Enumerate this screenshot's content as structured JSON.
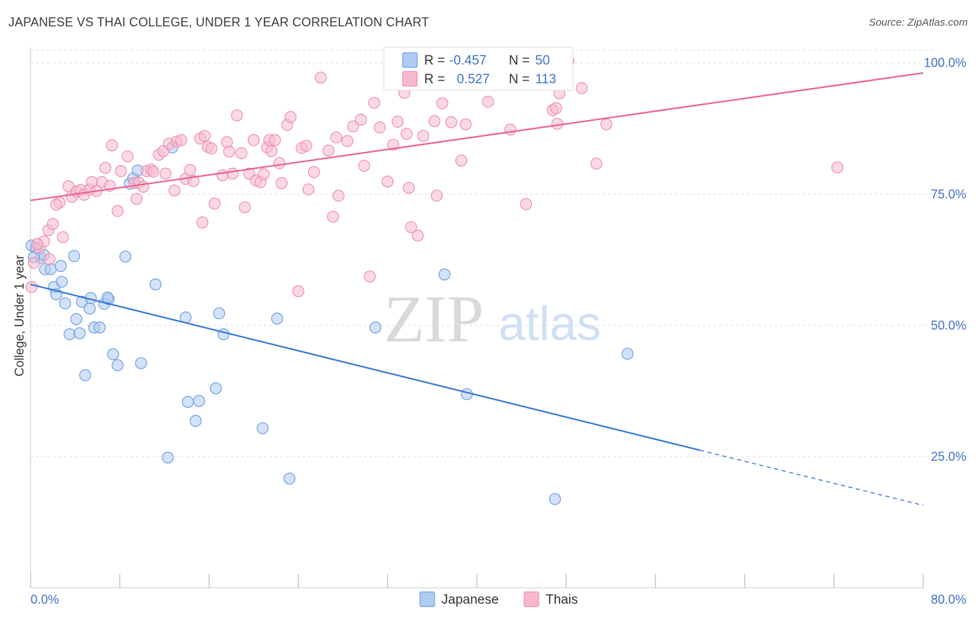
{
  "title": "JAPANESE VS THAI COLLEGE, UNDER 1 YEAR CORRELATION CHART",
  "source": "Source: ZipAtlas.com",
  "watermark": {
    "zip": "ZIP",
    "atlas": "atlas"
  },
  "colors": {
    "japanese_fill": "#aecbf2",
    "japanese_stroke": "#6f9fe0",
    "japanese_line": "#3777d4",
    "thai_fill": "#f7b9cd",
    "thai_stroke": "#ee8fb0",
    "thai_line": "#e8638f",
    "accent_text": "#3f72c8",
    "grid": "#dddddd"
  },
  "stats_box": {
    "rows": [
      {
        "series": "Japanese",
        "r_label": "R =",
        "r_value": "-0.457",
        "n_label": "N =",
        "n_value": "50"
      },
      {
        "series": "Thais",
        "r_label": "R =",
        "r_value": "0.527",
        "n_label": "N =",
        "n_value": "113"
      }
    ]
  },
  "legend": {
    "items": [
      "Japanese",
      "Thais"
    ]
  },
  "chart_data": {
    "type": "scatter",
    "title": "JAPANESE VS THAI COLLEGE, UNDER 1 YEAR CORRELATION CHART",
    "xlabel": "",
    "ylabel": "College, Under 1 year",
    "xlim": [
      0,
      80
    ],
    "ylim": [
      0,
      103
    ],
    "x_tick_labels": [
      "0.0%",
      "80.0%"
    ],
    "y_ticks": [
      25,
      50,
      75,
      100
    ],
    "y_tick_labels": [
      "25.0%",
      "50.0%",
      "75.0%",
      "100.0%"
    ],
    "grid": true,
    "legend_position": "bottom-center",
    "series": [
      {
        "name": "Japanese",
        "r": -0.457,
        "n": 50,
        "trend": {
          "x0": 0,
          "y0": 57.8,
          "x1": 60,
          "y1": 26.2,
          "dashed_to_x": 80,
          "dashed_to_y": 15.7
        },
        "points": [
          [
            0.1,
            65.2
          ],
          [
            0.5,
            64.7
          ],
          [
            0.9,
            62.9
          ],
          [
            1.3,
            60.7
          ],
          [
            1.8,
            60.7
          ],
          [
            1.2,
            63.4
          ],
          [
            2.7,
            61.3
          ],
          [
            3.9,
            63.2
          ],
          [
            2.1,
            57.3
          ],
          [
            2.3,
            55.9
          ],
          [
            2.8,
            58.3
          ],
          [
            3.1,
            54.2
          ],
          [
            4.1,
            51.2
          ],
          [
            4.6,
            54.5
          ],
          [
            5.3,
            53.2
          ],
          [
            3.5,
            48.3
          ],
          [
            4.4,
            48.5
          ],
          [
            5.7,
            49.6
          ],
          [
            6.2,
            49.6
          ],
          [
            6.6,
            54.1
          ],
          [
            7.0,
            55.0
          ],
          [
            7.4,
            44.5
          ],
          [
            7.8,
            42.4
          ],
          [
            9.9,
            42.8
          ],
          [
            4.9,
            40.5
          ],
          [
            11.2,
            57.8
          ],
          [
            8.5,
            63.1
          ],
          [
            8.9,
            77.0
          ],
          [
            9.2,
            78.0
          ],
          [
            9.6,
            79.5
          ],
          [
            12.7,
            83.9
          ],
          [
            13.9,
            51.5
          ],
          [
            14.1,
            35.4
          ],
          [
            15.1,
            35.6
          ],
          [
            14.8,
            31.8
          ],
          [
            16.6,
            38.0
          ],
          [
            16.9,
            52.3
          ],
          [
            17.3,
            48.3
          ],
          [
            12.3,
            24.8
          ],
          [
            20.8,
            30.4
          ],
          [
            22.1,
            51.3
          ],
          [
            23.2,
            20.8
          ],
          [
            30.9,
            49.6
          ],
          [
            37.1,
            59.7
          ],
          [
            39.1,
            36.9
          ],
          [
            53.5,
            44.6
          ],
          [
            47.0,
            16.9
          ],
          [
            0.3,
            63.0
          ],
          [
            5.4,
            55.2
          ],
          [
            6.9,
            55.3
          ]
        ]
      },
      {
        "name": "Thais",
        "r": 0.527,
        "n": 113,
        "trend": {
          "x0": 0,
          "y0": 73.8,
          "x1": 80,
          "y1": 98.1
        },
        "points": [
          [
            0.1,
            57.3
          ],
          [
            0.3,
            61.9
          ],
          [
            0.8,
            64.7
          ],
          [
            1.2,
            66.0
          ],
          [
            1.6,
            68.1
          ],
          [
            2.0,
            69.3
          ],
          [
            2.9,
            66.8
          ],
          [
            2.6,
            73.4
          ],
          [
            3.4,
            76.5
          ],
          [
            3.7,
            74.5
          ],
          [
            4.1,
            75.5
          ],
          [
            4.5,
            75.8
          ],
          [
            4.8,
            74.9
          ],
          [
            5.3,
            75.9
          ],
          [
            5.5,
            77.3
          ],
          [
            5.9,
            75.6
          ],
          [
            6.4,
            77.3
          ],
          [
            6.7,
            80.0
          ],
          [
            7.1,
            76.6
          ],
          [
            7.3,
            84.3
          ],
          [
            7.8,
            71.8
          ],
          [
            8.1,
            79.4
          ],
          [
            8.7,
            82.2
          ],
          [
            9.3,
            77.1
          ],
          [
            9.5,
            74.1
          ],
          [
            9.7,
            77.2
          ],
          [
            10.1,
            76.4
          ],
          [
            10.4,
            79.4
          ],
          [
            10.8,
            79.7
          ],
          [
            11.0,
            79.3
          ],
          [
            11.5,
            82.5
          ],
          [
            11.9,
            83.2
          ],
          [
            12.1,
            78.9
          ],
          [
            12.4,
            84.6
          ],
          [
            13.1,
            85.0
          ],
          [
            12.9,
            75.7
          ],
          [
            13.5,
            85.3
          ],
          [
            13.9,
            77.9
          ],
          [
            14.3,
            79.6
          ],
          [
            14.6,
            77.5
          ],
          [
            15.2,
            85.6
          ],
          [
            15.6,
            86.1
          ],
          [
            15.9,
            84.0
          ],
          [
            16.2,
            83.7
          ],
          [
            16.5,
            73.2
          ],
          [
            15.4,
            69.6
          ],
          [
            17.2,
            78.6
          ],
          [
            17.6,
            84.9
          ],
          [
            17.8,
            83.1
          ],
          [
            18.1,
            78.9
          ],
          [
            18.5,
            90.0
          ],
          [
            18.9,
            82.8
          ],
          [
            19.2,
            72.5
          ],
          [
            19.6,
            78.9
          ],
          [
            20.0,
            85.3
          ],
          [
            20.2,
            77.6
          ],
          [
            20.6,
            77.3
          ],
          [
            20.9,
            78.8
          ],
          [
            21.2,
            83.9
          ],
          [
            21.4,
            85.3
          ],
          [
            21.6,
            83.2
          ],
          [
            21.9,
            85.3
          ],
          [
            22.3,
            80.9
          ],
          [
            22.5,
            77.1
          ],
          [
            23.0,
            88.2
          ],
          [
            23.3,
            89.7
          ],
          [
            24.3,
            83.8
          ],
          [
            24.7,
            84.2
          ],
          [
            24.9,
            75.9
          ],
          [
            25.4,
            79.2
          ],
          [
            26.0,
            97.2
          ],
          [
            26.7,
            83.3
          ],
          [
            27.1,
            70.7
          ],
          [
            27.4,
            85.8
          ],
          [
            27.6,
            74.7
          ],
          [
            28.4,
            85.1
          ],
          [
            28.9,
            87.9
          ],
          [
            29.6,
            89.2
          ],
          [
            29.9,
            80.4
          ],
          [
            30.4,
            59.3
          ],
          [
            30.8,
            92.4
          ],
          [
            31.3,
            87.7
          ],
          [
            32.0,
            77.4
          ],
          [
            32.5,
            84.4
          ],
          [
            32.9,
            88.8
          ],
          [
            33.5,
            94.3
          ],
          [
            33.7,
            86.5
          ],
          [
            33.9,
            76.2
          ],
          [
            34.1,
            68.7
          ],
          [
            34.7,
            67.1
          ],
          [
            35.2,
            86.1
          ],
          [
            36.2,
            88.9
          ],
          [
            36.4,
            74.7
          ],
          [
            36.9,
            92.3
          ],
          [
            37.7,
            88.7
          ],
          [
            38.6,
            81.4
          ],
          [
            39.0,
            88.3
          ],
          [
            41.0,
            92.6
          ],
          [
            43.0,
            87.3
          ],
          [
            44.4,
            73.1
          ],
          [
            46.8,
            91.0
          ],
          [
            47.1,
            91.4
          ],
          [
            47.2,
            88.4
          ],
          [
            47.4,
            94.2
          ],
          [
            48.2,
            100.4
          ],
          [
            49.4,
            95.2
          ],
          [
            50.7,
            80.8
          ],
          [
            51.6,
            88.3
          ],
          [
            24.0,
            56.5
          ],
          [
            72.3,
            80.1
          ],
          [
            0.6,
            65.5
          ],
          [
            2.3,
            73.0
          ],
          [
            1.7,
            62.6
          ]
        ]
      }
    ]
  }
}
